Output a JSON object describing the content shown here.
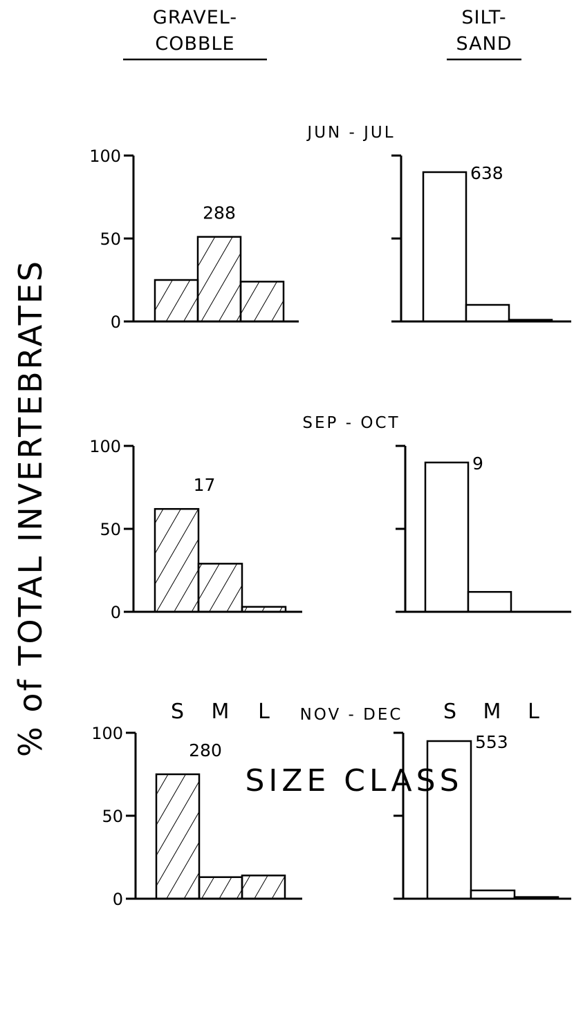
{
  "titles": {
    "gravel_line1": "GRAVEL-",
    "gravel_line2": "COBBLE",
    "silt_line1": "SILT-",
    "silt_line2": "SAND"
  },
  "ylabel": "% of TOTAL INVERTEBRATES",
  "xlabel": "SIZE CLASS",
  "categories": [
    "S",
    "M",
    "L"
  ],
  "colors": {
    "ink": "#000000",
    "background": "#ffffff"
  },
  "chart_data": [
    {
      "type": "bar",
      "substrate": "GRAVEL-COBBLE",
      "period": "JUN-JUL",
      "pattern": "hatched",
      "n": "288",
      "categories": [
        "S",
        "M",
        "L"
      ],
      "values": [
        25,
        51,
        24
      ],
      "ylim": [
        0,
        100
      ],
      "yticks": [
        0,
        50,
        100
      ],
      "ytick_labels": [
        "0",
        "50",
        "100"
      ]
    },
    {
      "type": "bar",
      "substrate": "SILT-SAND",
      "period": "JUN-JUL",
      "pattern": "open",
      "n": "638",
      "categories": [
        "S",
        "M",
        "L"
      ],
      "values": [
        90,
        10,
        1
      ],
      "ylim": [
        0,
        100
      ],
      "yticks": [
        0,
        50,
        100
      ],
      "ytick_labels": []
    },
    {
      "type": "bar",
      "substrate": "GRAVEL-COBBLE",
      "period": "SEP-OCT",
      "pattern": "hatched",
      "n": "17",
      "categories": [
        "S",
        "M",
        "L"
      ],
      "values": [
        62,
        29,
        3
      ],
      "ylim": [
        0,
        100
      ],
      "yticks": [
        0,
        50,
        100
      ],
      "ytick_labels": [
        "0",
        "50",
        "100"
      ]
    },
    {
      "type": "bar",
      "substrate": "SILT-SAND",
      "period": "SEP-OCT",
      "pattern": "open",
      "n": "9",
      "categories": [
        "S",
        "M",
        "L"
      ],
      "values": [
        90,
        12,
        0
      ],
      "ylim": [
        0,
        100
      ],
      "yticks": [
        0,
        50,
        100
      ],
      "ytick_labels": []
    },
    {
      "type": "bar",
      "substrate": "GRAVEL-COBBLE",
      "period": "NOV-DEC",
      "pattern": "hatched",
      "n": "280",
      "categories": [
        "S",
        "M",
        "L"
      ],
      "values": [
        75,
        13,
        14
      ],
      "ylim": [
        0,
        100
      ],
      "yticks": [
        0,
        50,
        100
      ],
      "ytick_labels": [
        "0",
        "50",
        "100"
      ]
    },
    {
      "type": "bar",
      "substrate": "SILT-SAND",
      "period": "NOV-DEC",
      "pattern": "open",
      "n": "553",
      "categories": [
        "S",
        "M",
        "L"
      ],
      "values": [
        95,
        5,
        1
      ],
      "ylim": [
        0,
        100
      ],
      "yticks": [
        0,
        50,
        100
      ],
      "ytick_labels": []
    }
  ]
}
